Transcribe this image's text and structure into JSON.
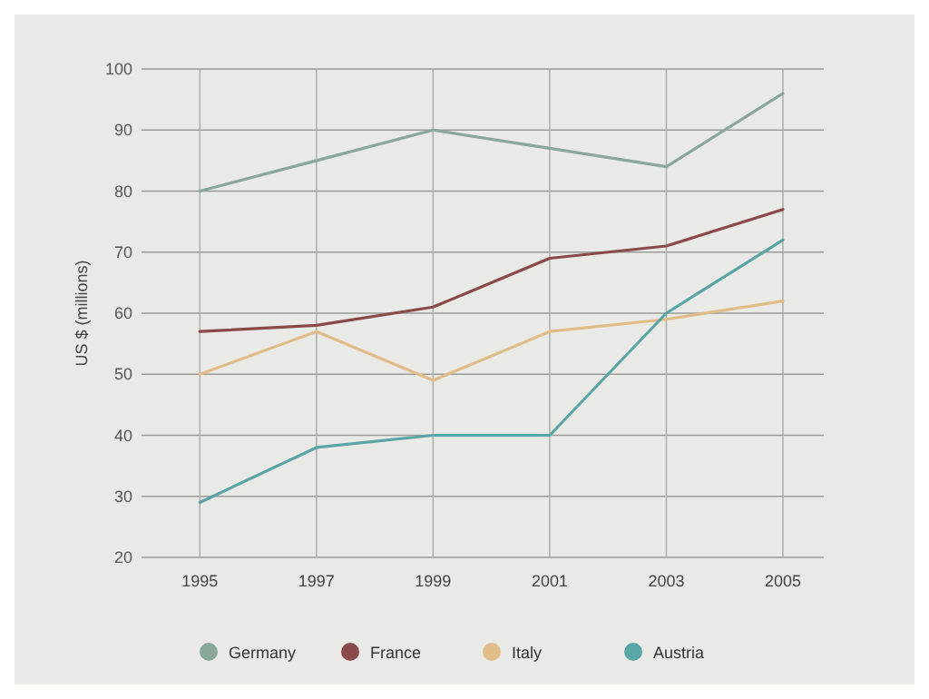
{
  "chart_data": {
    "type": "line",
    "ylabel": "US $ (millions)",
    "x": [
      1995,
      1997,
      1999,
      2001,
      2003,
      2005
    ],
    "xlim": [
      1994,
      2005.7
    ],
    "xticks": [
      1995,
      1997,
      1999,
      2001,
      2003,
      2005
    ],
    "ylim": [
      20,
      100
    ],
    "yticks": [
      20,
      30,
      40,
      50,
      60,
      70,
      80,
      90,
      100
    ],
    "grid": true,
    "legend": "bottom",
    "marker": "none",
    "line_style": "solid",
    "series": [
      {
        "name": "Germany",
        "color": "#8aa898",
        "values": [
          80,
          85,
          90,
          87,
          84,
          96
        ]
      },
      {
        "name": "France",
        "color": "#8b4a4a",
        "values": [
          57,
          58,
          61,
          69,
          71,
          77
        ]
      },
      {
        "name": "Italy",
        "color": "#e0bc88",
        "values": [
          50,
          57,
          49,
          57,
          59,
          62
        ]
      },
      {
        "name": "Austria",
        "color": "#5aa6a6",
        "values": [
          29,
          38,
          40,
          40,
          60,
          72
        ]
      }
    ]
  }
}
